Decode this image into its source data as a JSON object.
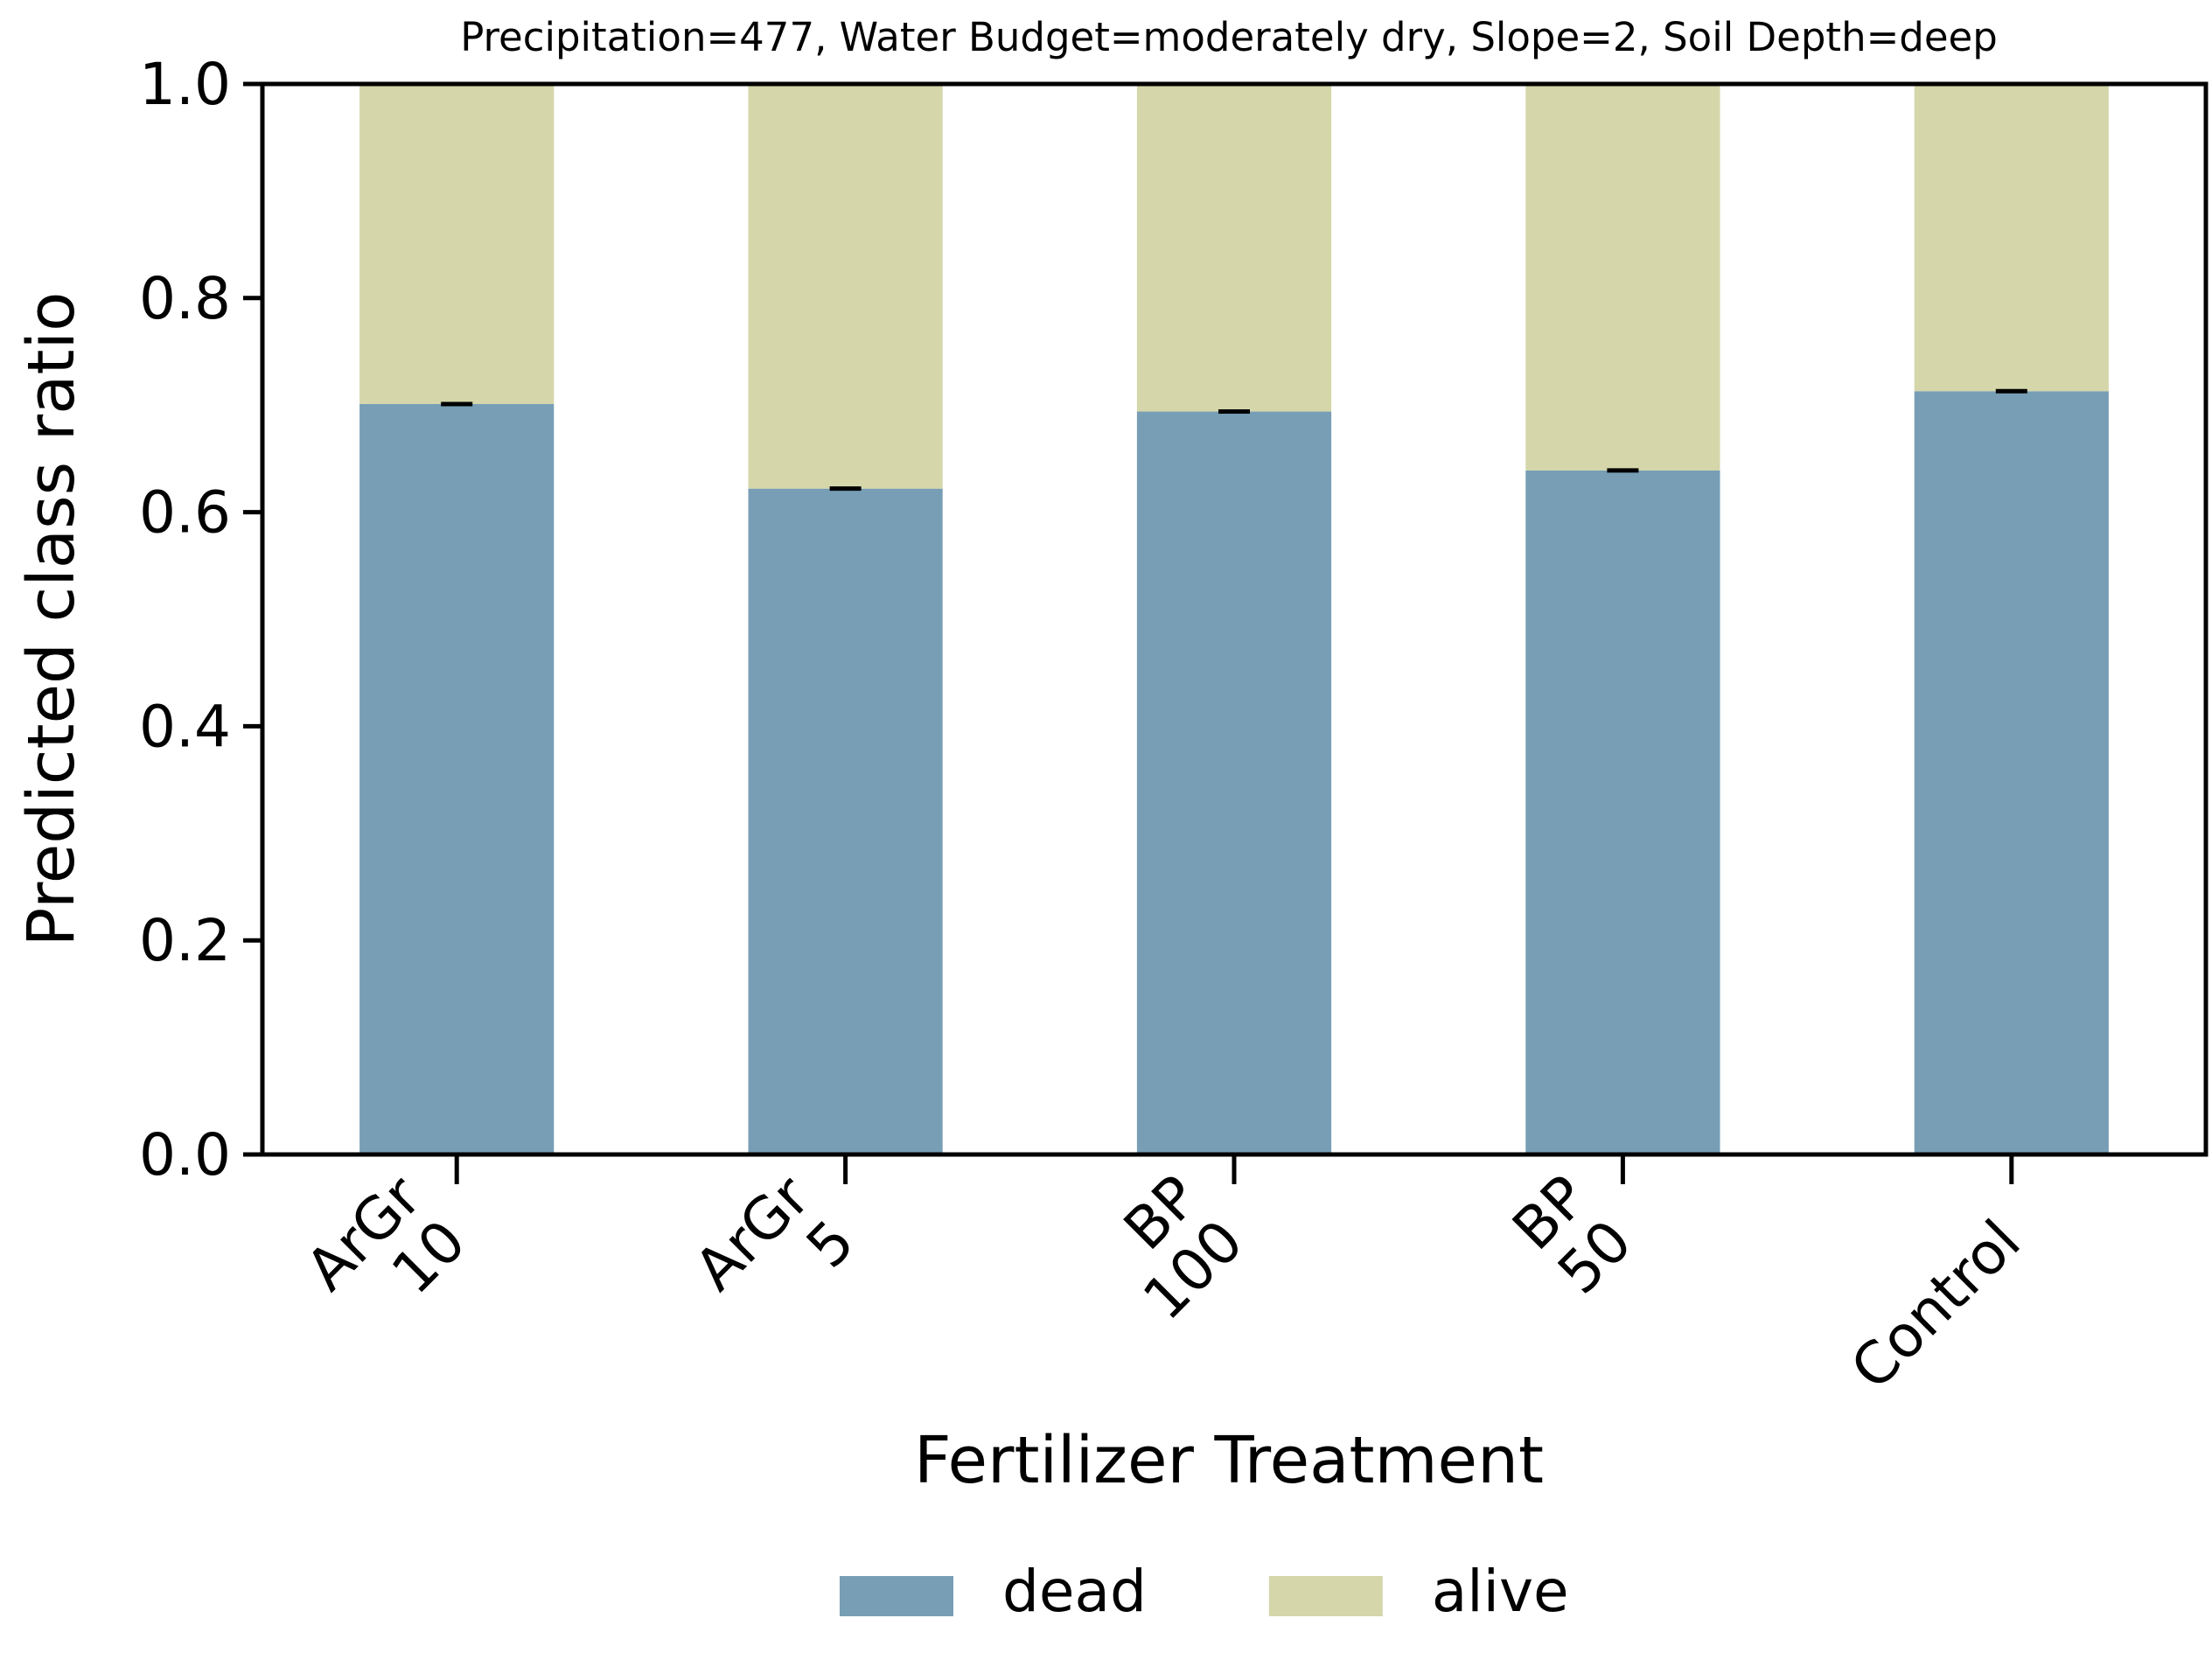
{
  "chart_data": {
    "type": "bar",
    "stacked": true,
    "title": "Precipitation=477, Water Budget=moderately dry, Slope=2, Soil Depth=deep",
    "xlabel": "Fertilizer Treatment",
    "ylabel": "Predicted class ratio",
    "ylim": [
      0,
      1.0
    ],
    "yticks": [
      "0.0",
      "0.2",
      "0.4",
      "0.6",
      "0.8",
      "1.0"
    ],
    "categories": [
      [
        "ArGr",
        "10"
      ],
      [
        "ArGr",
        "5"
      ],
      [
        "BP",
        "100"
      ],
      [
        "BP",
        "50"
      ],
      [
        "Control"
      ]
    ],
    "series": [
      {
        "name": "dead",
        "color": "#779eb5",
        "values": [
          0.701,
          0.622,
          0.694,
          0.639,
          0.713
        ],
        "error": [
          0.001,
          0.001,
          0.001,
          0.001,
          0.001
        ]
      },
      {
        "name": "alive",
        "color": "#d5d6aa",
        "values": [
          0.299,
          0.378,
          0.306,
          0.361,
          0.287
        ]
      }
    ],
    "legend": {
      "position": "bottom-center",
      "entries": [
        "dead",
        "alive"
      ]
    }
  }
}
